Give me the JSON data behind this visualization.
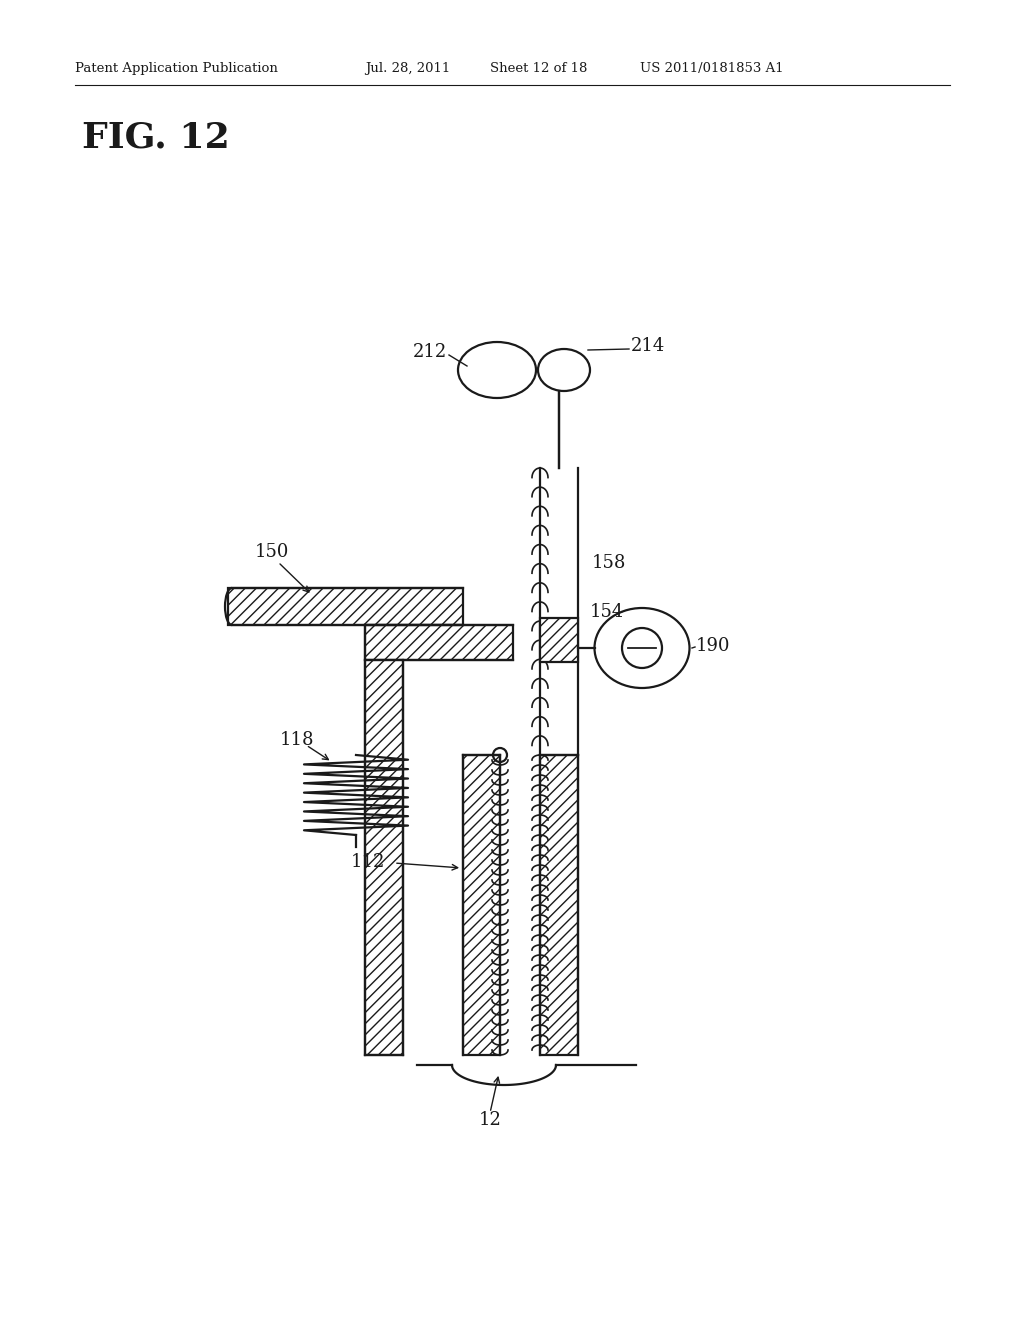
{
  "bg_color": "#ffffff",
  "line_color": "#1a1a1a",
  "header_text": "Patent Application Publication",
  "header_date": "Jul. 28, 2011",
  "header_sheet": "Sheet 12 of 18",
  "header_patent": "US 2011/0181853 A1",
  "fig_label": "FIG. 12"
}
